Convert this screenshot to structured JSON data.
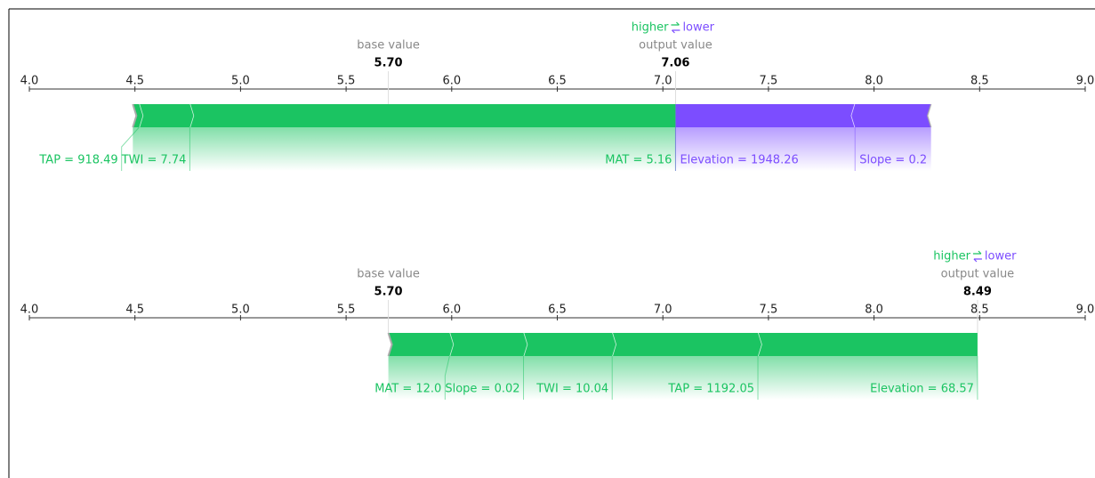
{
  "chart_data": [
    {
      "type": "force",
      "higher": "higher",
      "lower": "lower",
      "base_label": "base value",
      "base_value": {
        "value": 5.7,
        "label": "5.70"
      },
      "output_label": "output value",
      "output_value": 7.06,
      "xlim": [
        4,
        9
      ],
      "xticks": [
        {
          "value": 4,
          "label": "4.0"
        },
        4.5,
        {
          "value": 5,
          "label": "5.0"
        },
        5.5,
        {
          "value": 6,
          "label": "6.0"
        },
        6.5,
        {
          "value": 7,
          "label": "7.0"
        },
        7.5,
        {
          "value": 8,
          "label": "8.0"
        },
        8.5,
        {
          "value": 9,
          "label": "9.0"
        }
      ],
      "positive_color": "#1bc462",
      "negative_color": "#7c4dff",
      "positive": [
        {
          "label": "TAP = 918.49",
          "effect": 0.03
        },
        {
          "label": "TWI = 7.74",
          "effect": 0.24
        },
        {
          "label": "MAT = 5.16",
          "effect": 2.3
        }
      ],
      "negative": [
        {
          "label": "Elevation = 1948.26",
          "effect": 0.85
        },
        {
          "label": "Slope = 0.2",
          "effect": 0.36
        }
      ]
    },
    {
      "type": "force",
      "higher": "higher",
      "lower": "lower",
      "base_label": "base value",
      "base_value": {
        "value": 5.7,
        "label": "5.70"
      },
      "output_label": "output value",
      "output_value": 8.49,
      "xlim": [
        4,
        9
      ],
      "xticks": [
        {
          "value": 4,
          "label": "4.0"
        },
        4.5,
        {
          "value": 5,
          "label": "5.0"
        },
        5.5,
        {
          "value": 6,
          "label": "6.0"
        },
        6.5,
        {
          "value": 7,
          "label": "7.0"
        },
        7.5,
        {
          "value": 8,
          "label": "8.0"
        },
        8.5,
        {
          "value": 9,
          "label": "9.0"
        }
      ],
      "positive_color": "#1bc462",
      "negative_color": "#7c4dff",
      "positive": [
        {
          "label": "MAT = 12.0",
          "effect": 0.29
        },
        {
          "label": "Slope = 0.02",
          "effect": 0.35
        },
        {
          "label": "TWI = 10.04",
          "effect": 0.42
        },
        {
          "label": "TAP = 1192.05",
          "effect": 0.69
        },
        {
          "label": "Elevation = 68.57",
          "effect": 1.04
        }
      ],
      "negative": []
    }
  ]
}
